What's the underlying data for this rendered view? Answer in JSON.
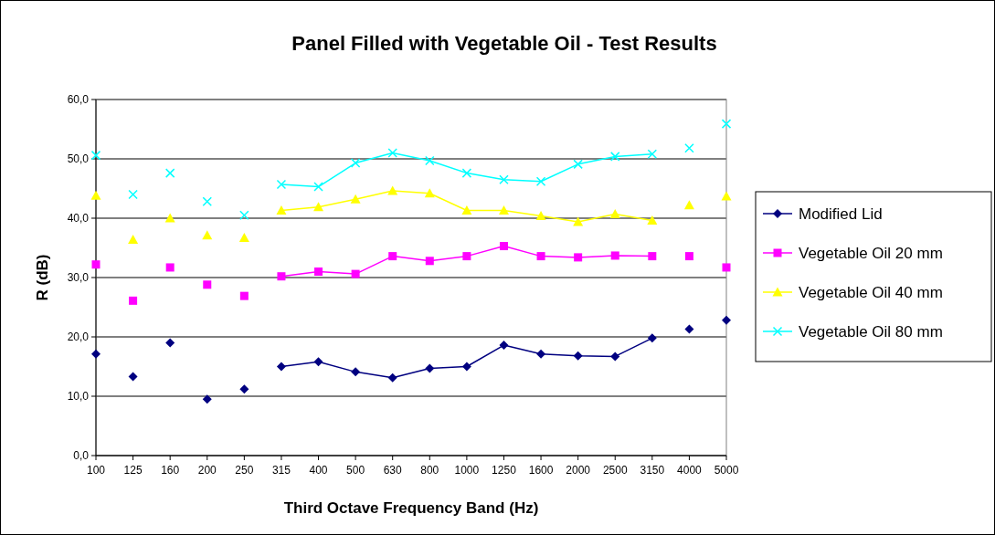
{
  "chart_data": {
    "type": "line",
    "title": "Panel Filled with Vegetable Oil - Test Results",
    "xlabel": "Third Octave Frequency Band (Hz)",
    "ylabel": "R (dB)",
    "categories": [
      "100",
      "125",
      "160",
      "200",
      "250",
      "315",
      "400",
      "500",
      "630",
      "800",
      "1000",
      "1250",
      "1600",
      "2000",
      "2500",
      "3150",
      "4000",
      "5000"
    ],
    "ylim": [
      0,
      60
    ],
    "yticks": [
      {
        "value": 0,
        "label": "0,0"
      },
      {
        "value": 10,
        "label": "10,0"
      },
      {
        "value": 20,
        "label": "20,0"
      },
      {
        "value": 30,
        "label": "30,0"
      },
      {
        "value": 40,
        "label": "40,0"
      },
      {
        "value": 50,
        "label": "50,0"
      },
      {
        "value": 60,
        "label": "60,0"
      }
    ],
    "grid": "y",
    "legend": "right",
    "series": [
      {
        "name": "Modified Lid",
        "color": "#000080",
        "marker": "diamond",
        "values": [
          null,
          null,
          null,
          null,
          null,
          15.0,
          15.8,
          14.1,
          13.1,
          14.7,
          15.0,
          18.6,
          17.1,
          16.8,
          16.7,
          19.8,
          null,
          null
        ]
      },
      {
        "name": "Vegetable Oil 20 mm",
        "color": "#ff00ff",
        "marker": "square",
        "values": [
          null,
          null,
          null,
          null,
          null,
          30.2,
          31.0,
          30.6,
          33.6,
          32.8,
          33.6,
          35.3,
          33.6,
          33.4,
          33.7,
          33.6,
          null,
          null
        ]
      },
      {
        "name": "Vegetable Oil 40 mm",
        "color": "#ffff00",
        "marker": "triangle",
        "values": [
          null,
          null,
          null,
          null,
          null,
          41.3,
          41.9,
          43.2,
          44.6,
          44.2,
          41.3,
          41.3,
          40.4,
          39.4,
          40.7,
          39.6,
          null,
          null
        ]
      },
      {
        "name": "Vegetable Oil 80 mm",
        "color": "#00ffff",
        "marker": "cross",
        "values": [
          null,
          null,
          null,
          null,
          null,
          45.7,
          45.3,
          49.3,
          51.0,
          49.7,
          47.6,
          46.5,
          46.2,
          49.1,
          50.4,
          50.8,
          null,
          null
        ]
      },
      {
        "type": "scatter",
        "color": "#000080",
        "marker": "diamond",
        "values": [
          17.1,
          13.3,
          19.0,
          9.5,
          11.2,
          null,
          null,
          null,
          null,
          null,
          null,
          null,
          null,
          null,
          null,
          null,
          21.3,
          22.8
        ]
      },
      {
        "type": "scatter",
        "color": "#ff00ff",
        "marker": "square",
        "values": [
          32.2,
          26.1,
          31.7,
          28.8,
          26.9,
          null,
          null,
          null,
          null,
          null,
          null,
          null,
          null,
          null,
          null,
          null,
          33.6,
          31.7
        ]
      },
      {
        "type": "scatter",
        "color": "#ffff00",
        "marker": "triangle",
        "values": [
          43.8,
          36.4,
          40.0,
          37.1,
          36.7,
          null,
          null,
          null,
          null,
          null,
          null,
          null,
          null,
          null,
          null,
          null,
          42.2,
          43.7
        ]
      },
      {
        "type": "scatter",
        "color": "#00ffff",
        "marker": "cross",
        "values": [
          50.6,
          44.0,
          47.6,
          42.8,
          40.5,
          null,
          null,
          null,
          null,
          null,
          null,
          null,
          null,
          null,
          null,
          null,
          51.8,
          55.9
        ]
      }
    ]
  }
}
